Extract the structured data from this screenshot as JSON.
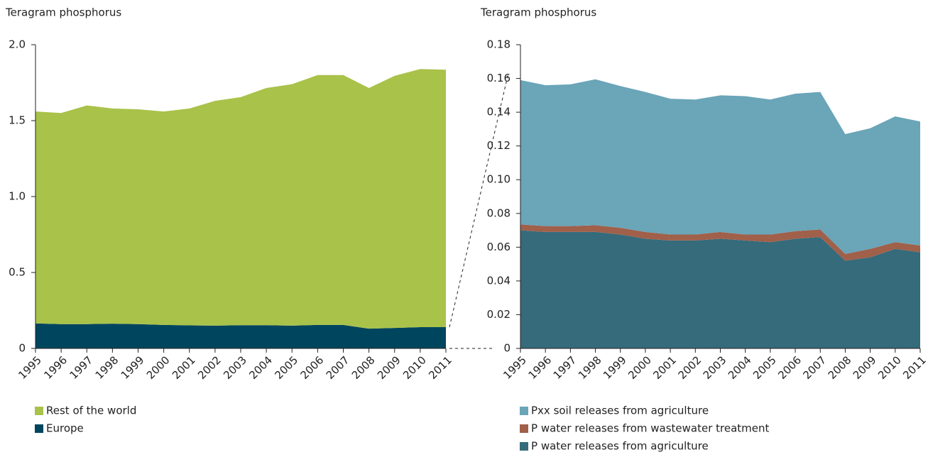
{
  "chart_data": [
    {
      "type": "area",
      "stacked": true,
      "ylabel": "Teragram phosphorus",
      "categories": [
        "1995",
        "1996",
        "1997",
        "1998",
        "1999",
        "2000",
        "2001",
        "2002",
        "2003",
        "2004",
        "2005",
        "2006",
        "2007",
        "2008",
        "2009",
        "2010",
        "2011"
      ],
      "series": [
        {
          "name": "Europe",
          "color": "#00455e",
          "values": [
            0.165,
            0.16,
            0.16,
            0.163,
            0.16,
            0.155,
            0.152,
            0.15,
            0.153,
            0.153,
            0.15,
            0.155,
            0.155,
            0.13,
            0.135,
            0.14,
            0.14
          ]
        },
        {
          "name": "Rest of the world",
          "color": "#a9c24a",
          "values": [
            1.395,
            1.39,
            1.44,
            1.417,
            1.415,
            1.405,
            1.428,
            1.48,
            1.502,
            1.562,
            1.59,
            1.645,
            1.645,
            1.585,
            1.66,
            1.7,
            1.695
          ]
        }
      ],
      "ylim": [
        0,
        2
      ],
      "yticks": [
        0,
        0.5,
        {
          "value": 1,
          "label": "1.0"
        },
        1.5,
        {
          "value": 2,
          "label": "2.0"
        }
      ]
    },
    {
      "type": "area",
      "stacked": true,
      "ylabel": "Teragram phosphorus",
      "categories": [
        "1995",
        "1996",
        "1997",
        "1998",
        "1999",
        "2000",
        "2001",
        "2002",
        "2003",
        "2004",
        "2005",
        "2006",
        "2007",
        "2008",
        "2009",
        "2010",
        "2011"
      ],
      "series": [
        {
          "name": "P water releases from agriculture",
          "color": "#356b7b",
          "values": [
            0.07,
            0.069,
            0.069,
            0.069,
            0.0675,
            0.065,
            0.064,
            0.064,
            0.065,
            0.064,
            0.063,
            0.065,
            0.066,
            0.052,
            0.054,
            0.059,
            0.057
          ]
        },
        {
          "name": "P water releases from wastewater treatment",
          "color": "#a0604a",
          "values": [
            0.0035,
            0.0035,
            0.0035,
            0.004,
            0.004,
            0.004,
            0.0035,
            0.0035,
            0.004,
            0.0035,
            0.0045,
            0.0045,
            0.0045,
            0.004,
            0.005,
            0.004,
            0.004
          ]
        },
        {
          "name": "Pxx soil releases from agriculture",
          "color": "#6aa5b8",
          "values": [
            0.0855,
            0.0835,
            0.084,
            0.0865,
            0.084,
            0.083,
            0.0805,
            0.08,
            0.081,
            0.082,
            0.08,
            0.0815,
            0.0815,
            0.071,
            0.0715,
            0.0745,
            0.0735
          ]
        }
      ],
      "ylim": [
        0,
        0.18
      ],
      "yticks": [
        0,
        0.02,
        0.04,
        0.06,
        0.08,
        {
          "value": 0.1,
          "label": "0.10"
        },
        0.12,
        0.14,
        0.16,
        0.18
      ]
    }
  ]
}
